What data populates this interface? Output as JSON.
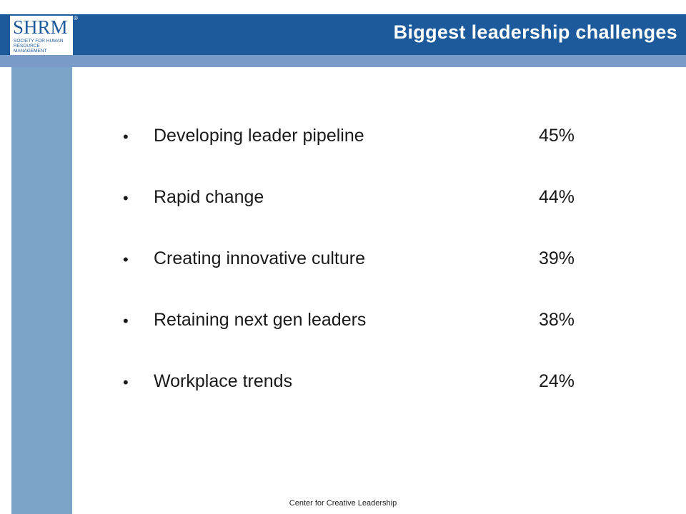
{
  "logo": {
    "wordmark": "SHRM",
    "subtitle": "Society for Human Resource Management",
    "registered": "®"
  },
  "title": "Biggest leadership challenges",
  "items": [
    {
      "bullet": "•",
      "label": "Developing leader pipeline",
      "value": "45%"
    },
    {
      "bullet": "•",
      "label": "Rapid change",
      "value": "44%"
    },
    {
      "bullet": "•",
      "label": "Creating innovative culture",
      "value": "39%"
    },
    {
      "bullet": "•",
      "label": "Retaining next gen leaders",
      "value": "38%"
    },
    {
      "bullet": "•",
      "label": "Workplace trends",
      "value": "24%"
    }
  ],
  "footer": "Center for Creative Leadership",
  "colors": {
    "header_band": "#1d5a9c",
    "header_strip": "#7a9ac7",
    "left_bar": "#7aa3c8"
  }
}
